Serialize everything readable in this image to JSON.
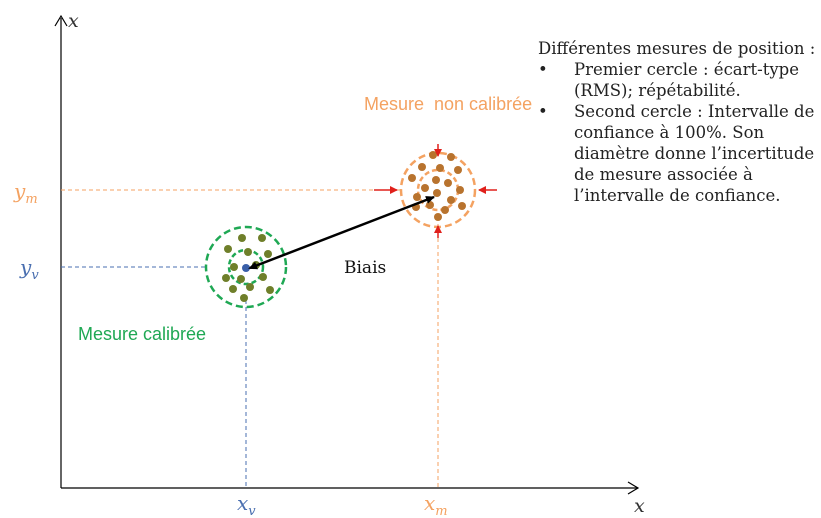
{
  "axes": {
    "y_axis_label": "x",
    "x_axis_label": "x"
  },
  "points": {
    "measured": {
      "x_label": "x",
      "x_sub": "m",
      "y_label": "y",
      "y_sub": "m"
    },
    "true_value": {
      "x_label": "x",
      "x_sub": "v",
      "y_label": "y",
      "y_sub": "v"
    }
  },
  "labels": {
    "uncalibrated": "Mesure  non calibrée",
    "calibrated": "Mesure calibrée",
    "bias": "Biais"
  },
  "legend": {
    "intro": "Différentes mesures de position :",
    "items": [
      {
        "bullet": "•",
        "text": "Premier cercle : écart-type (RMS); répétabilité."
      },
      {
        "bullet": "•",
        "text": "Second cercle : Intervalle de confiance à 100%. Son diamètre donne l’incertitude de mesure associée à l’intervalle de confiance."
      }
    ]
  },
  "colors": {
    "orange": "#f4a261",
    "orange_dots": "#b8732e",
    "green": "#1fa854",
    "green_dots": "#6f7f2a",
    "blue": "#4a6fb0",
    "red": "#e0201b",
    "black": "#000000"
  }
}
